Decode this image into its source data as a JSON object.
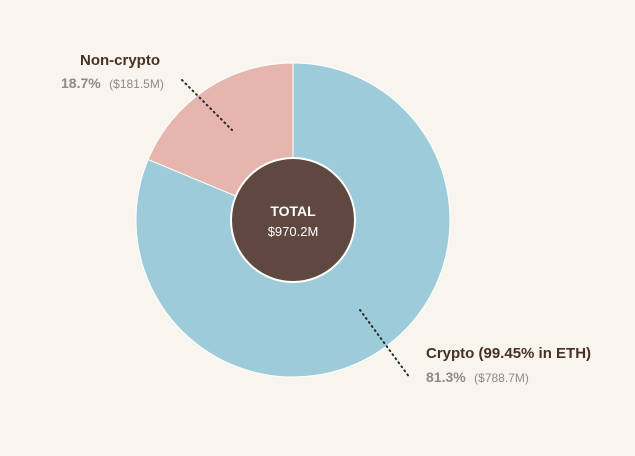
{
  "colors": {
    "background": "#f8f5ee",
    "crypto": "#9ecbd9",
    "non_crypto": "#e6b5ad",
    "center": "#5e483f",
    "title_text": "#4a2f25",
    "secondary_text": "#8f8a84"
  },
  "chart_data": {
    "type": "pie",
    "style": "donut",
    "slices": [
      {
        "label": "Non-crypto",
        "percent": "18.7%",
        "amount": "($181.5M)",
        "value": 181.5,
        "share": 18.7
      },
      {
        "label": "Crypto (99.45% in ETH)",
        "percent": "81.3%",
        "amount": "($788.7M)",
        "value": 788.7,
        "share": 81.3
      }
    ],
    "center": {
      "title": "TOTAL",
      "value": "$970.2M"
    }
  }
}
